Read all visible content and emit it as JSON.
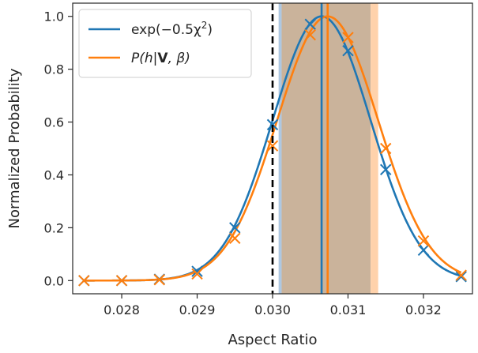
{
  "chart_data": {
    "type": "line",
    "xlabel": "Aspect Ratio",
    "ylabel": "Normalized Probability",
    "xlim": [
      0.02735,
      0.03265
    ],
    "ylim": [
      -0.05,
      1.05
    ],
    "xticks": [
      0.028,
      0.029,
      0.03,
      0.031,
      0.032
    ],
    "xtick_labels": [
      "0.028",
      "0.029",
      "0.030",
      "0.031",
      "0.032"
    ],
    "yticks": [
      0.0,
      0.2,
      0.4,
      0.6,
      0.8,
      1.0
    ],
    "ytick_labels": [
      "0.0",
      "0.2",
      "0.4",
      "0.6",
      "0.8",
      "1.0"
    ],
    "grid": false,
    "legend_position": "upper-left",
    "series": [
      {
        "name_parts": [
          "exp(−0.5χ",
          "2",
          ")"
        ],
        "color": "#1f77b4",
        "curve_mean": 0.03065,
        "curve_sigma": 0.00065,
        "peak_x": 0.03065,
        "band": [
          0.03008,
          0.03012
        ],
        "markers_x": [
          0.0275,
          0.028,
          0.0285,
          0.029,
          0.0295,
          0.03,
          0.0305,
          0.031,
          0.0315,
          0.032,
          0.0325
        ],
        "markers_y": [
          0.0,
          0.0,
          0.005,
          0.035,
          0.2,
          0.59,
          0.97,
          0.87,
          0.42,
          0.115,
          0.015
        ]
      },
      {
        "name_parts": [
          "P(h|",
          "V",
          ", β)"
        ],
        "color": "#ff7f0e",
        "curve_mean": 0.03073,
        "curve_sigma": 0.00067,
        "peak_x": 0.03073,
        "band": [
          0.03012,
          0.0314
        ],
        "markers_x": [
          0.0275,
          0.028,
          0.0285,
          0.029,
          0.0295,
          0.03,
          0.0305,
          0.031,
          0.0315,
          0.032,
          0.0325
        ],
        "markers_y": [
          0.0,
          0.0,
          0.003,
          0.025,
          0.16,
          0.51,
          0.93,
          0.92,
          0.5,
          0.15,
          0.02
        ]
      }
    ],
    "overlap_band": [
      0.03012,
      0.0313
    ],
    "overlap_color": "#cab39b",
    "reference_line_x": 0.03,
    "reference_line_style": "dashed-black"
  }
}
